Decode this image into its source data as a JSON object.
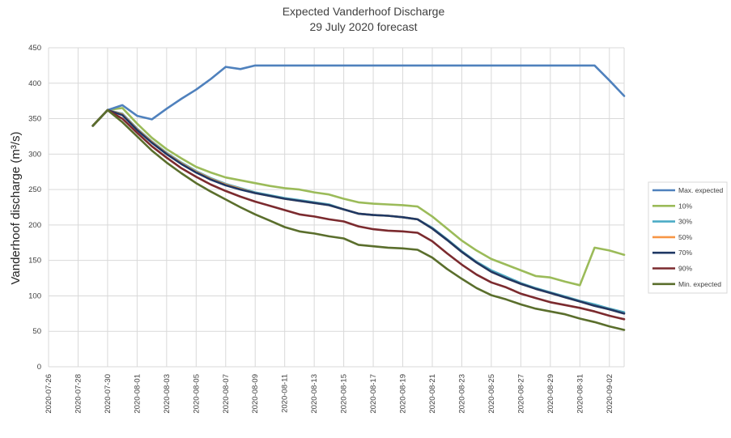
{
  "chart_data": {
    "type": "line",
    "title": "Expected Vanderhoof Discharge",
    "subtitle": "29 July 2020 forecast",
    "xlabel": "",
    "ylabel": "Vanderhoof discharge (m³/s)",
    "ylim": [
      0,
      450
    ],
    "yticks": [
      0,
      50,
      100,
      150,
      200,
      250,
      300,
      350,
      400,
      450
    ],
    "xlim": [
      "2020-07-26",
      "2020-09-03"
    ],
    "xtick_labels": [
      "2020-07-26",
      "2020-07-28",
      "2020-07-30",
      "2020-08-01",
      "2020-08-03",
      "2020-08-05",
      "2020-08-07",
      "2020-08-09",
      "2020-08-11",
      "2020-08-13",
      "2020-08-15",
      "2020-08-17",
      "2020-08-19",
      "2020-08-21",
      "2020-08-23",
      "2020-08-25",
      "2020-08-27",
      "2020-08-29",
      "2020-08-31",
      "2020-09-02"
    ],
    "grid": true,
    "legend_position": "right",
    "series": [
      {
        "name": "Max. expected",
        "color": "#4f81bd",
        "x": [
          "2020-07-29",
          "2020-07-30",
          "2020-07-31",
          "2020-08-01",
          "2020-08-02",
          "2020-08-03",
          "2020-08-04",
          "2020-08-05",
          "2020-08-06",
          "2020-08-07",
          "2020-08-08",
          "2020-08-09",
          "2020-08-10",
          "2020-08-15",
          "2020-08-20",
          "2020-08-25",
          "2020-08-30",
          "2020-09-01",
          "2020-09-02",
          "2020-09-03"
        ],
        "y": [
          340,
          362,
          369,
          354,
          349,
          364,
          378,
          391,
          406,
          423,
          420,
          425,
          425,
          425,
          425,
          425,
          425,
          425,
          404,
          382
        ]
      },
      {
        "name": "10%",
        "color": "#9bbb59",
        "x": [
          "2020-07-29",
          "2020-07-30",
          "2020-07-31",
          "2020-08-01",
          "2020-08-02",
          "2020-08-03",
          "2020-08-04",
          "2020-08-05",
          "2020-08-06",
          "2020-08-07",
          "2020-08-08",
          "2020-08-09",
          "2020-08-10",
          "2020-08-11",
          "2020-08-12",
          "2020-08-13",
          "2020-08-14",
          "2020-08-15",
          "2020-08-16",
          "2020-08-17",
          "2020-08-18",
          "2020-08-19",
          "2020-08-20",
          "2020-08-21",
          "2020-08-22",
          "2020-08-23",
          "2020-08-24",
          "2020-08-25",
          "2020-08-26",
          "2020-08-27",
          "2020-08-28",
          "2020-08-29",
          "2020-08-30",
          "2020-08-31",
          "2020-09-01",
          "2020-09-02",
          "2020-09-03"
        ],
        "y": [
          340,
          362,
          365,
          343,
          323,
          307,
          294,
          282,
          274,
          267,
          263,
          259,
          255,
          252,
          250,
          246,
          243,
          237,
          232,
          230,
          229,
          228,
          226,
          212,
          195,
          178,
          164,
          152,
          144,
          136,
          128,
          126,
          120,
          115,
          168,
          164,
          158
        ]
      },
      {
        "name": "30%",
        "color": "#4bacc6",
        "x": [
          "2020-07-29",
          "2020-07-30",
          "2020-07-31",
          "2020-08-01",
          "2020-08-02",
          "2020-08-03",
          "2020-08-04",
          "2020-08-05",
          "2020-08-06",
          "2020-08-07",
          "2020-08-08",
          "2020-08-09",
          "2020-08-10",
          "2020-08-11",
          "2020-08-12",
          "2020-08-13",
          "2020-08-14",
          "2020-08-15",
          "2020-08-16",
          "2020-08-17",
          "2020-08-18",
          "2020-08-19",
          "2020-08-20",
          "2020-08-21",
          "2020-08-22",
          "2020-08-23",
          "2020-08-24",
          "2020-08-25",
          "2020-08-26",
          "2020-08-27",
          "2020-08-28",
          "2020-08-29",
          "2020-08-30",
          "2020-08-31",
          "2020-09-01",
          "2020-09-02",
          "2020-09-03"
        ],
        "y": [
          340,
          362,
          357,
          336,
          318,
          302,
          288,
          276,
          266,
          258,
          252,
          246,
          242,
          238,
          235,
          232,
          229,
          222,
          216,
          214,
          213,
          211,
          208,
          196,
          180,
          163,
          148,
          136,
          127,
          118,
          111,
          105,
          99,
          93,
          88,
          82,
          77
        ]
      },
      {
        "name": "50%",
        "color": "#f79646",
        "x": [
          "2020-07-29",
          "2020-07-30",
          "2020-07-31",
          "2020-08-01",
          "2020-08-02",
          "2020-08-03",
          "2020-08-04",
          "2020-08-05",
          "2020-08-06",
          "2020-08-07",
          "2020-08-08",
          "2020-08-09",
          "2020-08-10",
          "2020-08-11",
          "2020-08-12",
          "2020-08-13",
          "2020-08-14",
          "2020-08-15",
          "2020-08-16",
          "2020-08-17",
          "2020-08-18",
          "2020-08-19",
          "2020-08-20",
          "2020-08-21",
          "2020-08-22",
          "2020-08-23",
          "2020-08-24",
          "2020-08-25",
          "2020-08-26",
          "2020-08-27",
          "2020-08-28",
          "2020-08-29",
          "2020-08-30",
          "2020-08-31",
          "2020-09-01",
          "2020-09-02",
          "2020-09-03"
        ],
        "y": [
          340,
          362,
          356,
          335,
          317,
          301,
          287,
          275,
          265,
          257,
          251,
          245,
          241,
          237,
          234,
          231,
          228,
          222,
          216,
          214,
          213,
          211,
          208,
          195,
          179,
          162,
          147,
          134,
          125,
          117,
          110,
          104,
          98,
          92,
          86,
          81,
          75
        ]
      },
      {
        "name": "70%",
        "color": "#1f3864",
        "x": [
          "2020-07-29",
          "2020-07-30",
          "2020-07-31",
          "2020-08-01",
          "2020-08-02",
          "2020-08-03",
          "2020-08-04",
          "2020-08-05",
          "2020-08-06",
          "2020-08-07",
          "2020-08-08",
          "2020-08-09",
          "2020-08-10",
          "2020-08-11",
          "2020-08-12",
          "2020-08-13",
          "2020-08-14",
          "2020-08-15",
          "2020-08-16",
          "2020-08-17",
          "2020-08-18",
          "2020-08-19",
          "2020-08-20",
          "2020-08-21",
          "2020-08-22",
          "2020-08-23",
          "2020-08-24",
          "2020-08-25",
          "2020-08-26",
          "2020-08-27",
          "2020-08-28",
          "2020-08-29",
          "2020-08-30",
          "2020-08-31",
          "2020-09-01",
          "2020-09-02",
          "2020-09-03"
        ],
        "y": [
          340,
          362,
          355,
          334,
          316,
          300,
          286,
          274,
          264,
          256,
          250,
          245,
          241,
          237,
          234,
          231,
          228,
          222,
          216,
          214,
          213,
          211,
          208,
          195,
          179,
          162,
          147,
          134,
          125,
          117,
          110,
          104,
          98,
          92,
          86,
          81,
          75
        ]
      },
      {
        "name": "90%",
        "color": "#7b2a2e",
        "x": [
          "2020-07-29",
          "2020-07-30",
          "2020-07-31",
          "2020-08-01",
          "2020-08-02",
          "2020-08-03",
          "2020-08-04",
          "2020-08-05",
          "2020-08-06",
          "2020-08-07",
          "2020-08-08",
          "2020-08-09",
          "2020-08-10",
          "2020-08-11",
          "2020-08-12",
          "2020-08-13",
          "2020-08-14",
          "2020-08-15",
          "2020-08-16",
          "2020-08-17",
          "2020-08-18",
          "2020-08-19",
          "2020-08-20",
          "2020-08-21",
          "2020-08-22",
          "2020-08-23",
          "2020-08-24",
          "2020-08-25",
          "2020-08-26",
          "2020-08-27",
          "2020-08-28",
          "2020-08-29",
          "2020-08-30",
          "2020-08-31",
          "2020-09-01",
          "2020-09-02",
          "2020-09-03"
        ],
        "y": [
          340,
          362,
          350,
          330,
          311,
          295,
          280,
          268,
          257,
          248,
          240,
          233,
          227,
          221,
          215,
          212,
          208,
          205,
          198,
          194,
          192,
          191,
          189,
          177,
          160,
          144,
          130,
          119,
          112,
          103,
          97,
          91,
          87,
          83,
          78,
          72,
          67
        ]
      },
      {
        "name": "Min. expected",
        "color": "#5a6e2c",
        "x": [
          "2020-07-29",
          "2020-07-30",
          "2020-07-31",
          "2020-08-01",
          "2020-08-02",
          "2020-08-03",
          "2020-08-04",
          "2020-08-05",
          "2020-08-06",
          "2020-08-07",
          "2020-08-08",
          "2020-08-09",
          "2020-08-10",
          "2020-08-11",
          "2020-08-12",
          "2020-08-13",
          "2020-08-14",
          "2020-08-15",
          "2020-08-16",
          "2020-08-17",
          "2020-08-18",
          "2020-08-19",
          "2020-08-20",
          "2020-08-21",
          "2020-08-22",
          "2020-08-23",
          "2020-08-24",
          "2020-08-25",
          "2020-08-26",
          "2020-08-27",
          "2020-08-28",
          "2020-08-29",
          "2020-08-30",
          "2020-08-31",
          "2020-09-01",
          "2020-09-02",
          "2020-09-03"
        ],
        "y": [
          340,
          362,
          345,
          325,
          305,
          288,
          273,
          259,
          247,
          236,
          225,
          215,
          206,
          197,
          191,
          188,
          184,
          181,
          172,
          170,
          168,
          167,
          165,
          154,
          138,
          124,
          111,
          101,
          95,
          88,
          82,
          78,
          74,
          68,
          63,
          57,
          52
        ]
      }
    ]
  }
}
